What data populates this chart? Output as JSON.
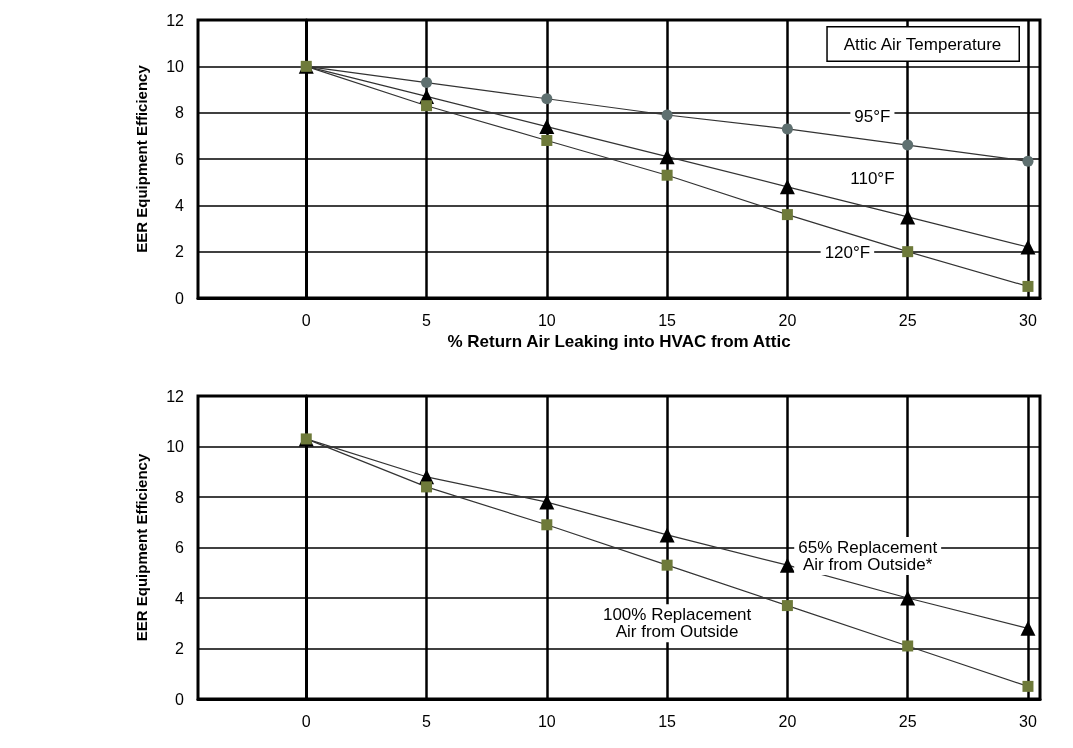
{
  "chart_data": [
    {
      "type": "line",
      "xlabel": "% Return Air Leaking into HVAC from Attic",
      "ylabel": "EER Equipment Efficiency",
      "legend_title": "Attic Air Temperature",
      "x": [
        0,
        5,
        10,
        15,
        20,
        25,
        30
      ],
      "xlim": [
        -4.5,
        30.5
      ],
      "xticks": [
        0,
        5,
        10,
        15,
        20,
        25,
        30
      ],
      "ylim": [
        0,
        12
      ],
      "yticks": [
        0,
        2,
        4,
        6,
        8,
        10,
        12
      ],
      "grid": true,
      "series": [
        {
          "name": "95°F",
          "color": "#5f7070",
          "marker": "circle",
          "values": [
            10,
            9.3,
            8.6,
            7.9,
            7.3,
            6.6,
            5.9
          ]
        },
        {
          "name": "110°F",
          "color": "#000000",
          "marker": "triangle",
          "values": [
            10,
            8.7,
            7.4,
            6.1,
            4.8,
            3.5,
            2.2
          ]
        },
        {
          "name": "120°F",
          "color": "#6e7a3a",
          "marker": "square",
          "values": [
            10,
            8.3,
            6.8,
            5.3,
            3.6,
            2.0,
            0.5
          ]
        }
      ]
    },
    {
      "type": "line",
      "ylabel": "EER Equipment Efficiency",
      "x": [
        0,
        5,
        10,
        15,
        20,
        25,
        30
      ],
      "xlim": [
        -4.5,
        30.5
      ],
      "xticks": [
        0,
        5,
        10,
        15,
        20,
        25,
        30
      ],
      "ylim": [
        0,
        12
      ],
      "yticks": [
        0,
        2,
        4,
        6,
        8,
        10,
        12
      ],
      "grid": true,
      "series": [
        {
          "name": "65% Replacement\nAir from Outside*",
          "color": "#000000",
          "marker": "triangle",
          "values": [
            10.3,
            8.8,
            7.8,
            6.5,
            5.3,
            4.0,
            2.8
          ]
        },
        {
          "name": "100% Replacement\nAir from Outside",
          "color": "#6e7a3a",
          "marker": "square",
          "values": [
            10.3,
            8.4,
            6.9,
            5.3,
            3.7,
            2.1,
            0.5
          ]
        }
      ]
    }
  ]
}
